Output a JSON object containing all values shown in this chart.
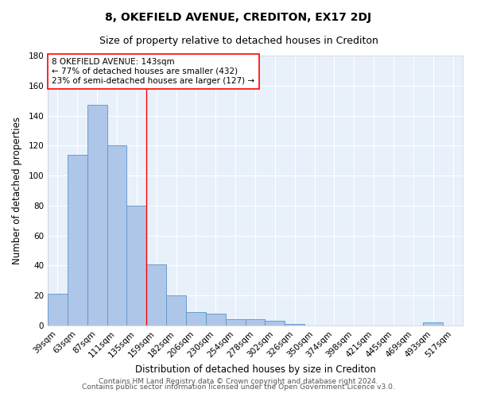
{
  "title": "8, OKEFIELD AVENUE, CREDITON, EX17 2DJ",
  "subtitle": "Size of property relative to detached houses in Crediton",
  "xlabel": "Distribution of detached houses by size in Crediton",
  "ylabel": "Number of detached properties",
  "footnote1": "Contains HM Land Registry data © Crown copyright and database right 2024.",
  "footnote2": "Contains public sector information licensed under the Open Government Licence v3.0.",
  "bar_labels": [
    "39sqm",
    "63sqm",
    "87sqm",
    "111sqm",
    "135sqm",
    "159sqm",
    "182sqm",
    "206sqm",
    "230sqm",
    "254sqm",
    "278sqm",
    "302sqm",
    "326sqm",
    "350sqm",
    "374sqm",
    "398sqm",
    "421sqm",
    "445sqm",
    "469sqm",
    "493sqm",
    "517sqm"
  ],
  "bar_values": [
    21,
    114,
    147,
    120,
    80,
    41,
    20,
    9,
    8,
    4,
    4,
    3,
    1,
    0,
    0,
    0,
    0,
    0,
    0,
    2,
    0
  ],
  "bar_color": "#aec6e8",
  "bar_edgecolor": "#5a96c8",
  "bar_width": 1.0,
  "ylim": [
    0,
    180
  ],
  "yticks": [
    0,
    20,
    40,
    60,
    80,
    100,
    120,
    140,
    160,
    180
  ],
  "red_line_x": 4.5,
  "annotation_line1": "8 OKEFIELD AVENUE: 143sqm",
  "annotation_line2": "← 77% of detached houses are smaller (432)",
  "annotation_line3": "23% of semi-detached houses are larger (127) →",
  "annotation_box_color": "white",
  "annotation_box_edgecolor": "red",
  "red_line_color": "red",
  "background_color": "#e8f0fa",
  "grid_color": "white",
  "title_fontsize": 10,
  "subtitle_fontsize": 9,
  "axis_label_fontsize": 8.5,
  "tick_fontsize": 7.5,
  "annotation_fontsize": 7.5,
  "footnote_fontsize": 6.5
}
